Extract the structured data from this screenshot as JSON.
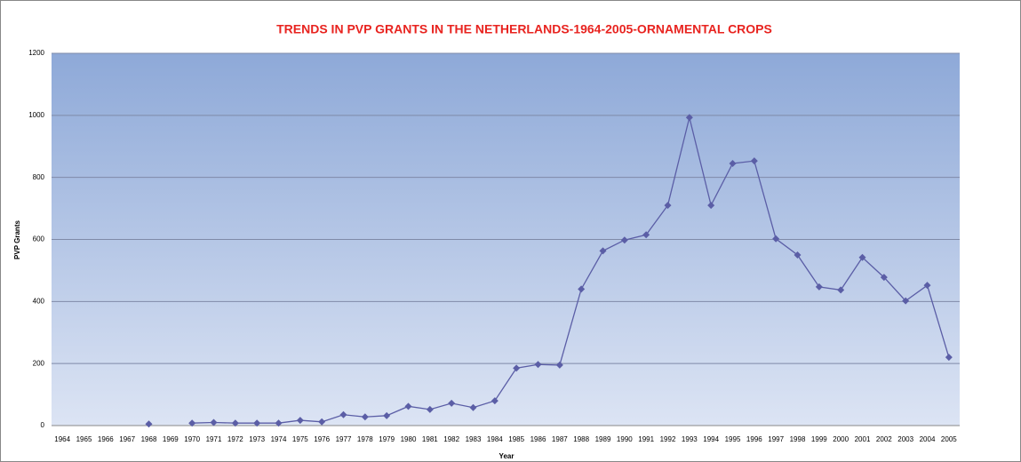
{
  "chart_data": {
    "type": "line",
    "title": "TRENDS IN PVP GRANTS IN THE NETHERLANDS-1964-2005-ORNAMENTAL CROPS",
    "x_label": "Year",
    "y_label": "PVP Grants",
    "categories": [
      "1964",
      "1965",
      "1966",
      "1967",
      "1968",
      "1969",
      "1970",
      "1971",
      "1972",
      "1973",
      "1974",
      "1975",
      "1976",
      "1977",
      "1978",
      "1979",
      "1980",
      "1981",
      "1982",
      "1983",
      "1984",
      "1985",
      "1986",
      "1987",
      "1988",
      "1989",
      "1990",
      "1991",
      "1992",
      "1993",
      "1994",
      "1995",
      "1996",
      "1997",
      "1998",
      "1999",
      "2000",
      "2001",
      "2002",
      "2003",
      "2004",
      "2005"
    ],
    "series": [
      {
        "name": "PVP Grants",
        "color": "#5b5ea6",
        "values": [
          null,
          null,
          null,
          null,
          5,
          null,
          8,
          10,
          8,
          8,
          8,
          17,
          12,
          35,
          28,
          32,
          62,
          52,
          72,
          58,
          80,
          185,
          197,
          195,
          440,
          563,
          598,
          615,
          710,
          993,
          710,
          845,
          853,
          602,
          550,
          447,
          437,
          542,
          478,
          402,
          452,
          220
        ]
      }
    ],
    "ylim": [
      0,
      1200
    ],
    "yticks": [
      0,
      200,
      400,
      600,
      800,
      1000,
      1200
    ],
    "grid": true
  }
}
